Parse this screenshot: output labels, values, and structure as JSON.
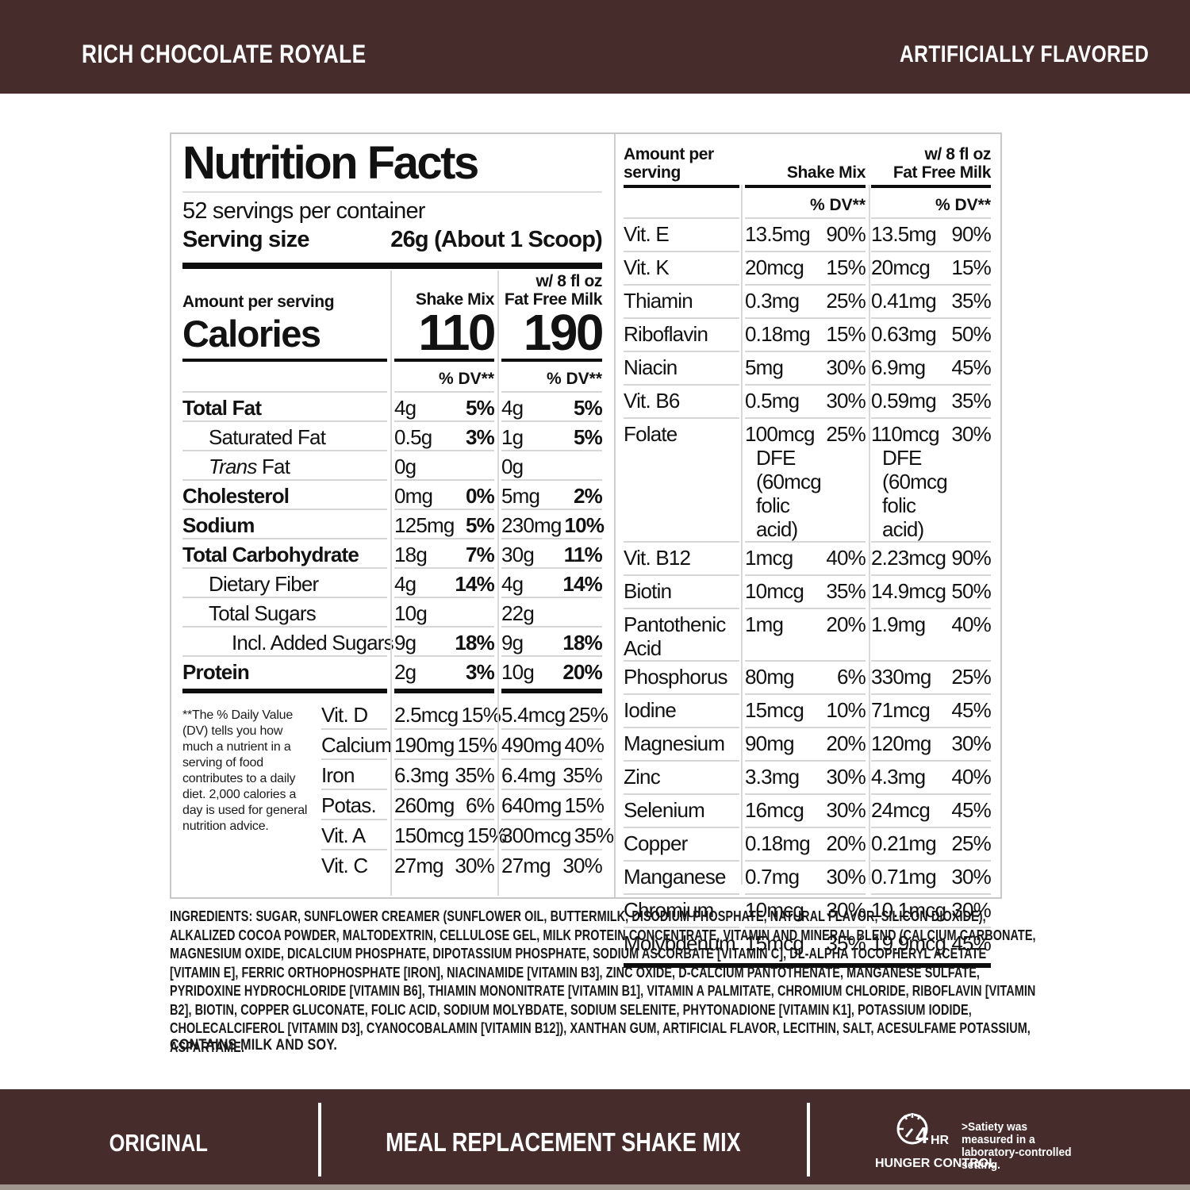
{
  "colors": {
    "banner": "#472c2c",
    "bar": "#0d0d0d",
    "separator": "#d6d6d6"
  },
  "banner_top": {
    "flavor": "RICH CHOCOLATE ROYALE",
    "note": "ARTIFICIALLY FLAVORED"
  },
  "nutrition": {
    "title": "Nutrition Facts",
    "servings": "52 servings per container",
    "serving_size_label": "Serving size",
    "serving_size_value": "26g (About 1 Scoop)",
    "amount_per_serving": "Amount per serving",
    "calories_label": "Calories",
    "calories_mix": "110",
    "calories_milk": "190",
    "col_mix": "Shake Mix",
    "col_milk_l1": "w/ 8 fl oz",
    "col_milk_l2": "Fat Free Milk",
    "dv": "% DV**",
    "main_rows": [
      {
        "name": "Total Fat",
        "b": 1,
        "c1": "4g",
        "p1": "5%",
        "c2": "4g",
        "p2": "5%"
      },
      {
        "name": "Saturated Fat",
        "ind": 1,
        "c1": "0.5g",
        "p1": "3%",
        "c2": "1g",
        "p2": "5%"
      },
      {
        "name": "Trans Fat",
        "ind": 1,
        "it": 1,
        "c1": "0g",
        "p1": "",
        "c2": "0g",
        "p2": ""
      },
      {
        "name": "Cholesterol",
        "b": 1,
        "c1": "0mg",
        "p1": "0%",
        "c2": "5mg",
        "p2": "2%"
      },
      {
        "name": "Sodium",
        "b": 1,
        "c1": "125mg",
        "p1": "5%",
        "c2": "230mg",
        "p2": "10%"
      },
      {
        "name": "Total Carbohydrate",
        "b": 1,
        "c1": "18g",
        "p1": "7%",
        "c2": "30g",
        "p2": "11%"
      },
      {
        "name": "Dietary Fiber",
        "ind": 1,
        "c1": "4g",
        "p1": "14%",
        "c2": "4g",
        "p2": "14%"
      },
      {
        "name": "Total Sugars",
        "ind": 1,
        "c1": "10g",
        "p1": "",
        "c2": "22g",
        "p2": ""
      },
      {
        "name": "Incl. Added Sugars",
        "ind": 2,
        "c1": "9g",
        "p1": "18%",
        "c2": "9g",
        "p2": "18%"
      },
      {
        "name": "Protein",
        "b": 1,
        "c1": "2g",
        "p1": "3%",
        "c2": "10g",
        "p2": "20%"
      }
    ],
    "footnote": "**The % Daily Value (DV) tells you how much a nutrient in a serving of food contributes to a daily diet. 2,000 calories a day is used for general nutrition advice.",
    "left_vitamins": [
      {
        "name": "Vit. D",
        "c1": "2.5mcg",
        "p1": "15%",
        "c2": "5.4mcg",
        "p2": "25%"
      },
      {
        "name": "Calcium",
        "c1": "190mg",
        "p1": "15%",
        "c2": "490mg",
        "p2": "40%"
      },
      {
        "name": "Iron",
        "c1": "6.3mg",
        "p1": "35%",
        "c2": "6.4mg",
        "p2": "35%"
      },
      {
        "name": "Potas.",
        "c1": "260mg",
        "p1": "6%",
        "c2": "640mg",
        "p2": "15%"
      },
      {
        "name": "Vit. A",
        "c1": "150mcg",
        "p1": "15%",
        "c2": "300mcg",
        "p2": "35%"
      },
      {
        "name": "Vit. C",
        "c1": "27mg",
        "p1": "30%",
        "c2": "27mg",
        "p2": "30%"
      }
    ],
    "right_header_l1": "Amount per",
    "right_header_l2": "serving",
    "right_rows": [
      {
        "name": "Vit. E",
        "c1": "13.5mg",
        "p1": "90%",
        "c2": "13.5mg",
        "p2": "90%"
      },
      {
        "name": "Vit. K",
        "c1": "20mcg",
        "p1": "15%",
        "c2": "20mcg",
        "p2": "15%"
      },
      {
        "name": "Thiamin",
        "c1": "0.3mg",
        "p1": "25%",
        "c2": "0.41mg",
        "p2": "35%"
      },
      {
        "name": "Riboflavin",
        "c1": "0.18mg",
        "p1": "15%",
        "c2": "0.63mg",
        "p2": "50%"
      },
      {
        "name": "Niacin",
        "c1": "5mg",
        "p1": "30%",
        "c2": "6.9mg",
        "p2": "45%"
      },
      {
        "name": "Vit. B6",
        "c1": "0.5mg",
        "p1": "30%",
        "c2": "0.59mg",
        "p2": "35%"
      },
      {
        "name": "Folate",
        "c1": "100mcg\nDFE (60mcg\nfolic acid)",
        "p1": "25%",
        "c2": "110mcg\nDFE (60mcg\nfolic acid)",
        "p2": "30%"
      },
      {
        "name": "Vit. B12",
        "c1": "1mcg",
        "p1": "40%",
        "c2": "2.23mcg",
        "p2": "90%"
      },
      {
        "name": "Biotin",
        "c1": "10mcg",
        "p1": "35%",
        "c2": "14.9mcg",
        "p2": "50%"
      },
      {
        "name": "Pantothenic Acid",
        "c1": "1mg",
        "p1": "20%",
        "c2": "1.9mg",
        "p2": "40%"
      },
      {
        "name": "Phosphorus",
        "c1": "80mg",
        "p1": "6%",
        "c2": "330mg",
        "p2": "25%"
      },
      {
        "name": "Iodine",
        "c1": "15mcg",
        "p1": "10%",
        "c2": "71mcg",
        "p2": "45%"
      },
      {
        "name": "Magnesium",
        "c1": "90mg",
        "p1": "20%",
        "c2": "120mg",
        "p2": "30%"
      },
      {
        "name": "Zinc",
        "c1": "3.3mg",
        "p1": "30%",
        "c2": "4.3mg",
        "p2": "40%"
      },
      {
        "name": "Selenium",
        "c1": "16mcg",
        "p1": "30%",
        "c2": "24mcg",
        "p2": "45%"
      },
      {
        "name": "Copper",
        "c1": "0.18mg",
        "p1": "20%",
        "c2": "0.21mg",
        "p2": "25%"
      },
      {
        "name": "Manganese",
        "c1": "0.7mg",
        "p1": "30%",
        "c2": "0.71mg",
        "p2": "30%"
      },
      {
        "name": "Chromium",
        "c1": "10mcg",
        "p1": "30%",
        "c2": "10.1mcg",
        "p2": "30%"
      },
      {
        "name": "Molybdenum",
        "c1": "15mcg",
        "p1": "35%",
        "c2": "19.9mcg",
        "p2": "45%"
      }
    ]
  },
  "ingredients": {
    "label": "INGREDIENTS:",
    "text": "SUGAR, SUNFLOWER CREAMER (SUNFLOWER OIL, BUTTERMILK, DISODIUM PHOSPHATE, NATURAL FLAVOR, SILICON DIOXIDE), ALKALIZED COCOA POWDER, MALTODEXTRIN, CELLULOSE GEL, MILK PROTEIN CONCENTRATE, VITAMIN AND MINERAL BLEND (CALCIUM CARBONATE, MAGNESIUM OXIDE, DICALCIUM PHOSPHATE, DIPOTASSIUM PHOSPHATE, SODIUM ASCORBATE [VITAMIN C], DL-ALPHA TOCOPHERYL ACETATE [VITAMIN E], FERRIC ORTHOPHOSPHATE [IRON], NIACINAMIDE [VITAMIN B3], ZINC OXIDE, D-CALCIUM PANTOTHENATE, MANGANESE SULFATE, PYRIDOXINE HYDROCHLORIDE [VITAMIN B6], THIAMIN MONONITRATE [VITAMIN B1], VITAMIN A PALMITATE, CHROMIUM CHLORIDE, RIBOFLAVIN [VITAMIN B2], BIOTIN, COPPER GLUCONATE, FOLIC ACID, SODIUM MOLYBDATE, SODIUM SELENITE, PHYTONADIONE [VITAMIN K1], POTASSIUM IODIDE, CHOLECALCIFEROL [VITAMIN D3], CYANOCOBALAMIN [VITAMIN B12]), XANTHAN GUM, ARTIFICIAL FLAVOR, LECITHIN, SALT, ACESULFAME POTASSIUM, ASPARTAME.",
    "contains": "CONTAINS MILK AND SOY."
  },
  "banner_bottom": {
    "left": "ORIGINAL",
    "center": "MEAL REPLACEMENT SHAKE MIX",
    "clock_value": "4",
    "clock_unit": "HR",
    "clock_label": "HUNGER CONTROL",
    "note": ">Satiety was measured in a laboratory-controlled setting."
  }
}
